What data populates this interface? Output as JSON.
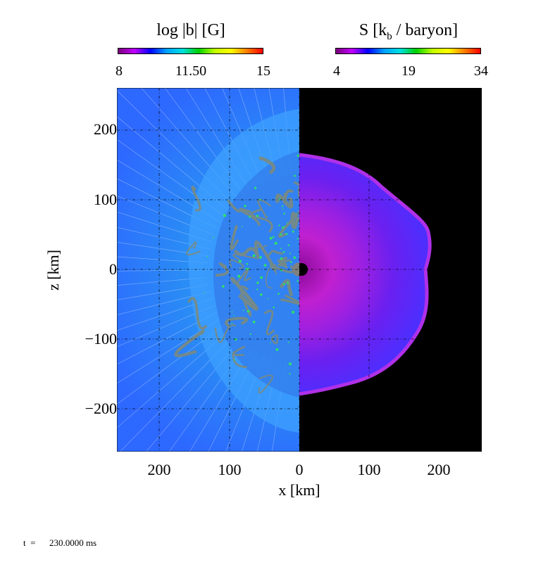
{
  "colorbars": [
    {
      "title_main": "log |b| [G]",
      "ticks": [
        "8",
        "11.50",
        "15"
      ]
    },
    {
      "title_main": "S [k",
      "title_sub": "b",
      "title_rest": " / baryon]",
      "ticks": [
        "4",
        "19",
        "34"
      ]
    }
  ],
  "time_label": "t  =      230.0000 ms",
  "chart_data": {
    "type": "heatmap",
    "description_panels": [
      "magnetic field strength (left half)",
      "entropy (right half)"
    ],
    "xlabel": "x [km]",
    "ylabel": "z [km]",
    "xticks": [
      "200",
      "100",
      "0",
      "100",
      "200"
    ],
    "yticks": [
      "200",
      "100",
      "0",
      "−100",
      "−200"
    ],
    "xlim": [
      -260,
      260
    ],
    "ylim": [
      -260,
      260
    ],
    "left_panel": {
      "quantity": "log |b| [G]",
      "range": [
        8,
        15
      ]
    },
    "right_panel": {
      "quantity": "S [kb / baryon]",
      "range": [
        4,
        34
      ],
      "shock_radius_km_at_equator": 180
    },
    "grid": true,
    "colormap": [
      "#7a007a",
      "#c000ff",
      "#0000ff",
      "#00a0ff",
      "#00e0e0",
      "#00d000",
      "#c0ff00",
      "#ffff00",
      "#ff8000",
      "#ff0000"
    ]
  }
}
